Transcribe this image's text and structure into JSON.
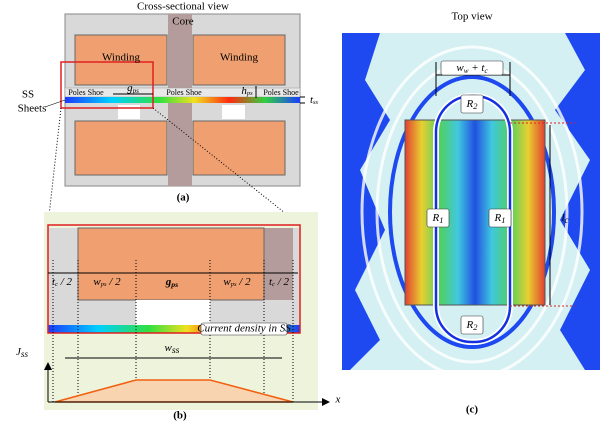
{
  "panel_a": {
    "title": "Cross-sectional view",
    "core": "Core",
    "windings": [
      "Winding",
      "Winding"
    ],
    "pole_shoes": [
      "Poles Shoe",
      "Poles Shoe",
      "Poles Shoe"
    ],
    "gap": [
      {
        "normal": "g"
      },
      {
        "sub": "ps"
      }
    ],
    "height": [
      {
        "normal": "h"
      },
      {
        "sub": "ps"
      }
    ],
    "thickness": [
      {
        "normal": "t"
      },
      {
        "sub": "ss"
      }
    ],
    "sheets": [
      "SS",
      "Sheets"
    ],
    "caption": "(a)"
  },
  "panel_b": {
    "dims": [
      [
        {
          "normal": "t"
        },
        {
          "sub": "c"
        },
        {
          "normal": " / 2"
        }
      ],
      [
        {
          "normal": "w"
        },
        {
          "sub": "ps"
        },
        {
          "normal": " / 2"
        }
      ],
      [
        {
          "normal": "g"
        },
        {
          "sub": "ps"
        }
      ],
      [
        {
          "normal": "w"
        },
        {
          "sub": "ps"
        },
        {
          "normal": " / 2"
        }
      ],
      [
        {
          "normal": "t"
        },
        {
          "sub": "c"
        },
        {
          "normal": " / 2"
        }
      ]
    ],
    "strip_label": "Current density in SS",
    "y_axis": [
      {
        "normal": "J"
      },
      {
        "sub": "ss"
      }
    ],
    "width": [
      {
        "normal": "w"
      },
      {
        "sub": "ss"
      }
    ],
    "x_axis": "x",
    "caption": "(b)"
  },
  "panel_c": {
    "title": "Top view",
    "width": [
      {
        "normal": "w"
      },
      {
        "sub": "w"
      },
      {
        "normal": " + t"
      },
      {
        "sub": "c"
      }
    ],
    "radii": [
      [
        {
          "normal": "R"
        },
        {
          "sub": "2"
        }
      ],
      [
        {
          "normal": "R"
        },
        {
          "sub": "1"
        }
      ],
      [
        {
          "normal": "R"
        },
        {
          "sub": "1"
        }
      ],
      [
        {
          "normal": "R"
        },
        {
          "sub": "2"
        }
      ]
    ],
    "length": [
      {
        "normal": "l"
      },
      {
        "sub": "c"
      }
    ],
    "caption": "(c)"
  }
}
